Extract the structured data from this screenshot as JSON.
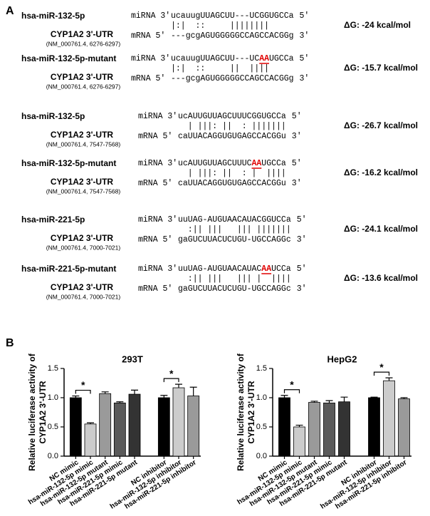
{
  "panel_a": {
    "label": "A",
    "blocks": [
      {
        "mirna_name": "hsa-miR-132-5p",
        "target_name": "CYP1A2 3'-UTR",
        "target_acc": "(NM_000761.4, 6276-6297)",
        "mirna_tag": "miRNA 3'",
        "mirna_seq": "ucauugUUAGCUU---UCGGUGCCa",
        "mirna_end": "5'",
        "pairing": "|:|  ::     ||||||||",
        "mrna_tag": "mRNA 5'",
        "mrna_seq": "---gcgAGUGGGGGCCAGCCACGGg",
        "mrna_end": "3'",
        "dg": "ΔG: -24 kcal/mol"
      },
      {
        "mirna_name": "hsa-miR-132-5p-mutant",
        "target_name": "CYP1A2 3'-UTR",
        "target_acc": "(NM_000761.4, 6276-6297)",
        "mirna_tag": "miRNA 3'",
        "mirna_seq_before": "ucauugUUAGCUU---UC",
        "mutation": "AA",
        "mirna_seq_after": "UGCCa",
        "mirna_end": "5'",
        "pairing": "|:|  ::     ||  ||||",
        "mrna_tag": "mRNA 5'",
        "mrna_seq": "---gcgAGUGGGGGCCAGCCACGGg",
        "mrna_end": "3'",
        "dg": "ΔG: -15.7 kcal/mol"
      },
      {
        "mirna_name": "hsa-miR-132-5p",
        "target_name": "CYP1A2 3'-UTR",
        "target_acc": "(NM_000761.4, 7547-7568)",
        "mirna_tag": "miRNA 3'",
        "mirna_seq": "ucAUUGUUAGCUUUCGGUGCCa",
        "mirna_end": "5'",
        "pairing": "  | |||: ||  : |||||||",
        "mrna_tag": "mRNA 5'",
        "mrna_seq": "caUUACAGGUGUGAGCCACGGu",
        "mrna_end": "3'",
        "dg": "ΔG: -26.7 kcal/mol"
      },
      {
        "mirna_name": "hsa-miR-132-5p-mutant",
        "target_name": "CYP1A2 3'-UTR",
        "target_acc": "(NM_000761.4, 7547-7568)",
        "mirna_tag": "miRNA 3'",
        "mirna_seq_before": "ucAUUGUUAGCUUUC",
        "mutation": "AA",
        "mirna_seq_after": "UGCCa",
        "mirna_end": "5'",
        "pairing": "  | |||: ||  : |  ||||",
        "mrna_tag": "mRNA 5'",
        "mrna_seq": "caUUACAGGUGUGAGCCACGGu",
        "mrna_end": "3'",
        "dg": "ΔG: -16.2 kcal/mol"
      },
      {
        "mirna_name": "hsa-miR-221-5p",
        "target_name": "CYP1A2 3'-UTR",
        "target_acc": "(NM_000761.4, 7000-7021)",
        "mirna_tag": "miRNA 3'",
        "mirna_seq": "uuUAG-AUGUAACAUACGGUCCa",
        "mirna_end": "5'",
        "pairing": "  :|| |||   ||| |||||||",
        "mrna_tag": "mRNA 5'",
        "mrna_seq": "gaGUCUUACUCUGU-UGCCAGGc",
        "mrna_end": "3'",
        "dg": "ΔG: -24.1 kcal/mol"
      },
      {
        "mirna_name": "hsa-miR-221-5p-mutant",
        "target_name": "CYP1A2 3'-UTR",
        "target_acc": "(NM_000761.4, 7000-7021)",
        "mirna_tag": "miRNA 3'",
        "mirna_seq_before": "uuUAG-AUGUAACAUAC",
        "mutation": "AA",
        "mirna_seq_after": "UCCa",
        "mirna_end": "5'",
        "pairing": "  :|| |||   ||| |  ||||",
        "mrna_tag": "mRNA 5'",
        "mrna_seq": "gaGUCUUACUCUGU-UGCCAGGc",
        "mrna_end": "3'",
        "dg": "ΔG: -13.6 kcal/mol"
      }
    ]
  },
  "panel_b_label": "B",
  "chart_data": [
    {
      "type": "bar",
      "title": "293T",
      "ylabel": [
        "Relative luciferase activity of",
        "CYP1A2 3'-UTR"
      ],
      "categories": [
        "NC mimic",
        "hsa-miR-132-5p mimic",
        "hsa-miR-132-5p mutant",
        "hsa-miR-221-5p mimic",
        "hsa-miR-221-5p mutant",
        null,
        "NC inhibitor",
        "hsa-miR-132-5p inhibitor",
        "hsa-miR-221-5p inhibitor"
      ],
      "values": [
        1.0,
        0.55,
        1.07,
        0.91,
        1.06,
        null,
        1.0,
        1.17,
        1.03
      ],
      "errors": [
        0.03,
        0.02,
        0.03,
        0.02,
        0.07,
        null,
        0.04,
        0.06,
        0.15
      ],
      "colors": [
        "#000000",
        "#cccccc",
        "#9a9a9a",
        "#5a5a5a",
        "#333333",
        null,
        "#000000",
        "#cccccc",
        "#9a9a9a"
      ],
      "ylim": [
        0,
        1.5
      ],
      "yticks": [
        {
          "value": 0,
          "label": "0.0"
        },
        {
          "value": 0.5,
          "label": "0.5"
        },
        {
          "value": 1,
          "label": "1.0"
        },
        {
          "value": 1.5,
          "label": "1.5"
        }
      ],
      "significance": [
        {
          "bars": [
            0,
            1
          ],
          "label": "*"
        },
        {
          "bars": [
            6,
            7
          ],
          "label": "*"
        }
      ]
    },
    {
      "type": "bar",
      "title": "HepG2",
      "ylabel": [
        "Relative luciferase activity of",
        "CYP1A2 3'-UTR"
      ],
      "categories": [
        "NC mimic",
        "hsa-miR-132-5p mimic",
        "hsa-miR-132-5p mutant",
        "hsa-miR-221-5p mimic",
        "hsa-miR-221-5p mutant",
        null,
        "NC inhibitor",
        "hsa-miR-132-5p inhibitor",
        "hsa-miR-221-5p inhibitor"
      ],
      "values": [
        1.0,
        0.5,
        0.92,
        0.91,
        0.93,
        null,
        1.0,
        1.29,
        0.98
      ],
      "errors": [
        0.04,
        0.03,
        0.02,
        0.04,
        0.08,
        null,
        0.01,
        0.05,
        0.02
      ],
      "colors": [
        "#000000",
        "#cccccc",
        "#9a9a9a",
        "#5a5a5a",
        "#333333",
        null,
        "#000000",
        "#cccccc",
        "#9a9a9a"
      ],
      "ylim": [
        0,
        1.5
      ],
      "yticks": [
        {
          "value": 0,
          "label": "0.0"
        },
        {
          "value": 0.5,
          "label": "0.5"
        },
        {
          "value": 1,
          "label": "1.0"
        },
        {
          "value": 1.5,
          "label": "1.5"
        }
      ],
      "significance": [
        {
          "bars": [
            0,
            1
          ],
          "label": "*"
        },
        {
          "bars": [
            6,
            7
          ],
          "label": "*"
        }
      ]
    }
  ]
}
